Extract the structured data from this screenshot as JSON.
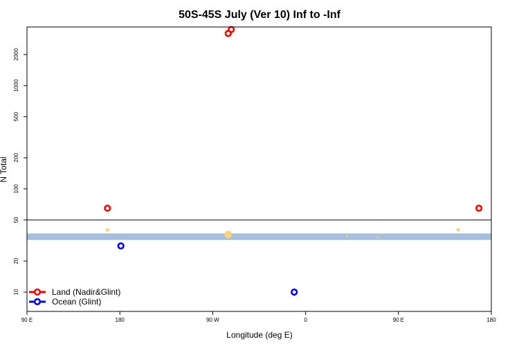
{
  "chart_data": {
    "type": "scatter",
    "title": "50S-45S July (Ver 10)   Inf to -Inf",
    "xlabel": "Longitude (deg E)",
    "ylabel": "N Total",
    "y_scale": "log",
    "xlim": [
      90,
      540
    ],
    "ylim": [
      6.5,
      3700
    ],
    "x_ticks": [
      {
        "value": 90,
        "label": "90 E"
      },
      {
        "value": 180,
        "label": "180"
      },
      {
        "value": 270,
        "label": "90 W"
      },
      {
        "value": 360,
        "label": "0"
      },
      {
        "value": 450,
        "label": "90 E"
      },
      {
        "value": 540,
        "label": "180"
      }
    ],
    "y_ticks": [
      10,
      20,
      50,
      100,
      200,
      500,
      1000,
      2000
    ],
    "reference_line_y": 50,
    "band": {
      "y_min": 32,
      "y_max": 37,
      "color": "#a8bedd"
    },
    "band_markers": [
      {
        "x": 168,
        "y": 40,
        "size": 2
      },
      {
        "x": 285,
        "y": 36,
        "size": 5
      },
      {
        "x": 508,
        "y": 40,
        "size": 2
      },
      {
        "x": 400,
        "y": 35,
        "size": 1
      },
      {
        "x": 430,
        "y": 34,
        "size": 1
      }
    ],
    "series": [
      {
        "name": "Land (Nadir&Glint)",
        "color": "#ee0000",
        "points": [
          {
            "x": 168,
            "y": 65
          },
          {
            "x": 285,
            "y": 3200
          },
          {
            "x": 288,
            "y": 3500
          },
          {
            "x": 528,
            "y": 65
          }
        ]
      },
      {
        "name": "Ocean (Glint)",
        "color": "#0000dd",
        "points": [
          {
            "x": 181,
            "y": 28
          },
          {
            "x": 349,
            "y": 10
          }
        ]
      }
    ],
    "legend_position": "bottom-left"
  }
}
